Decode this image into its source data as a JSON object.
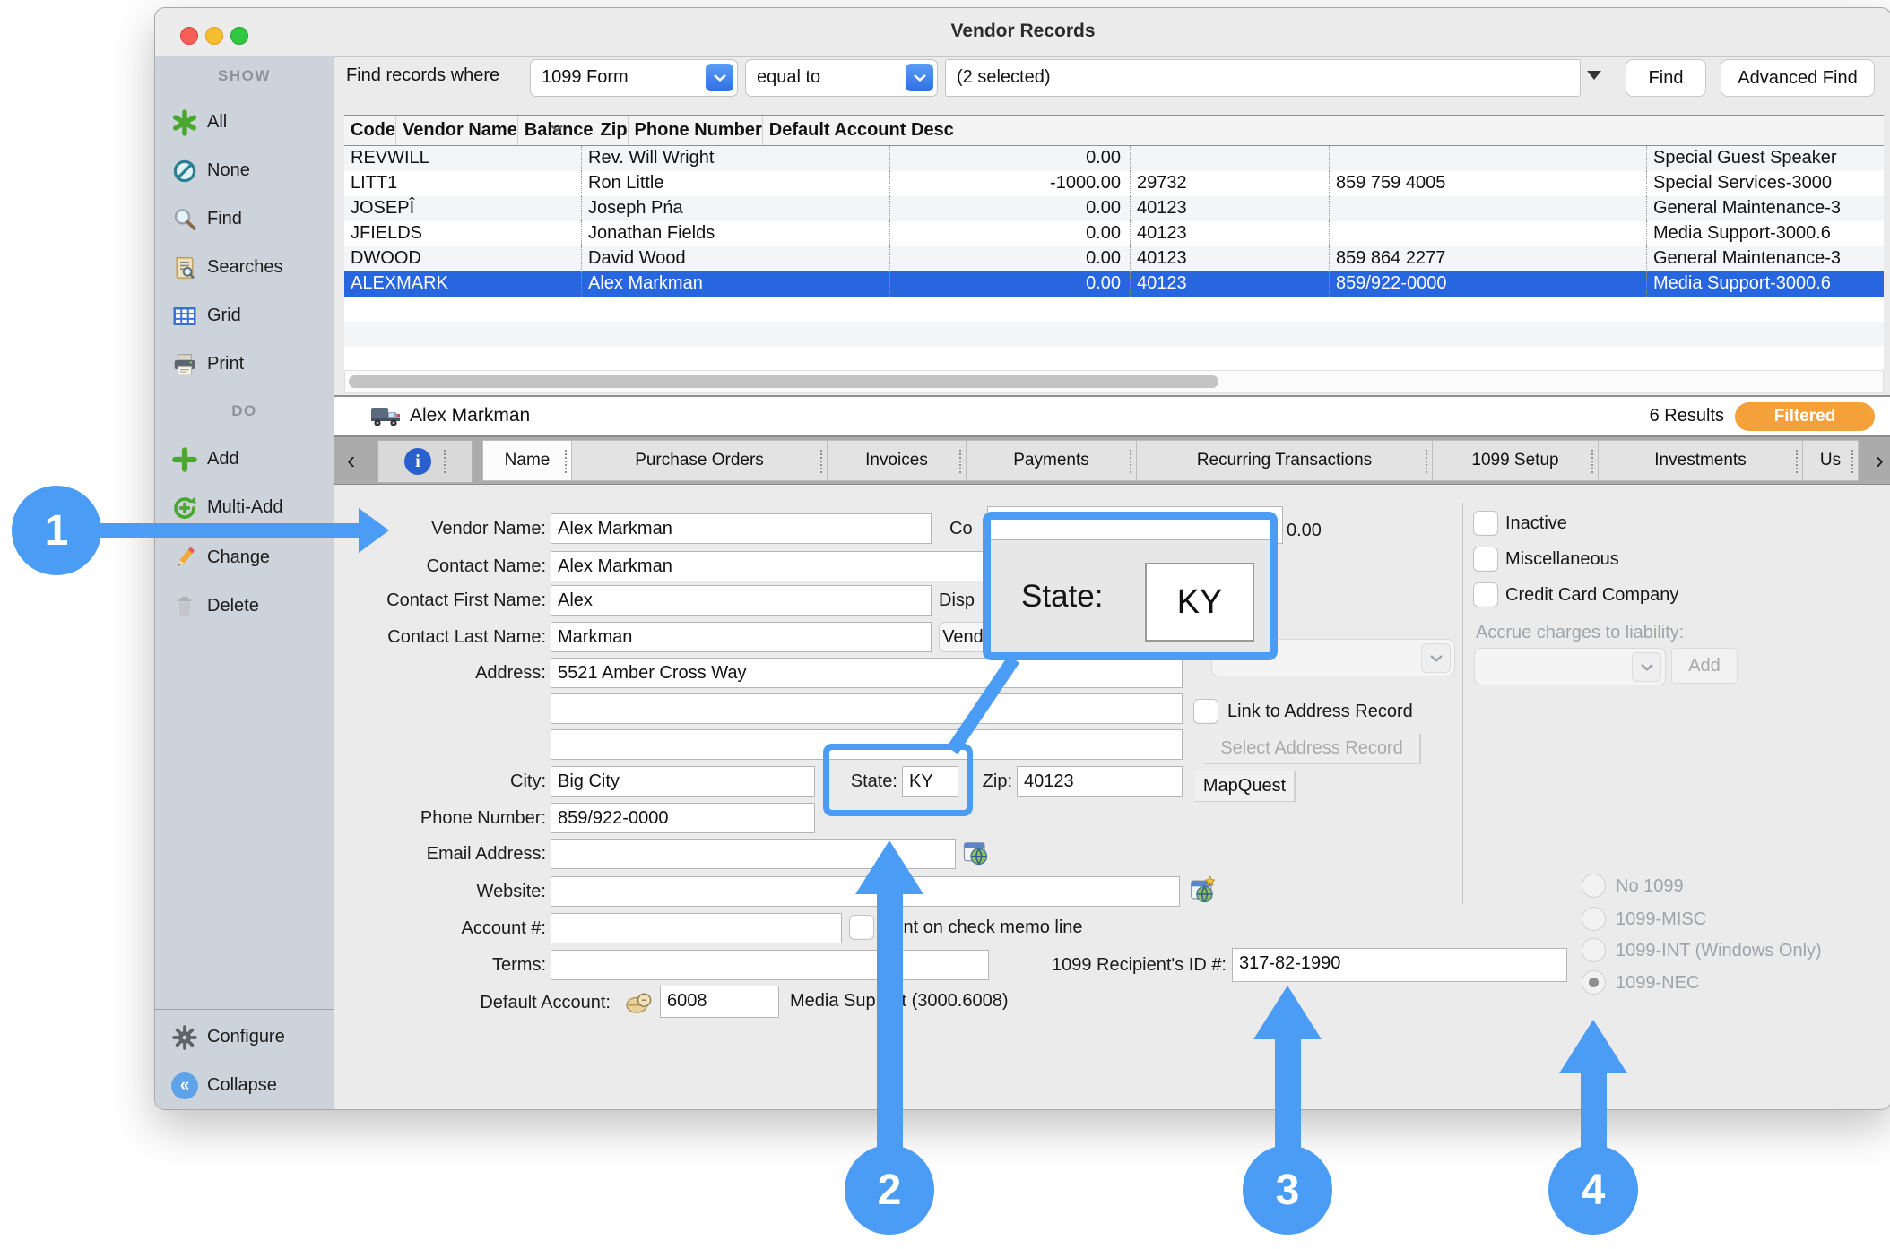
{
  "window": {
    "title": "Vendor Records"
  },
  "toolbar": {
    "find_label": "Find records where",
    "field_selector": "1099 Form",
    "operator_selector": "equal to",
    "value": "(2 selected)",
    "find_button": "Find",
    "advanced_find_button": "Advanced Find"
  },
  "sidebar": {
    "show_header": "SHOW",
    "do_header": "DO",
    "items": {
      "all": "All",
      "none": "None",
      "find": "Find",
      "searches": "Searches",
      "grid": "Grid",
      "print": "Print",
      "add": "Add",
      "multi_add": "Multi-Add",
      "change": "Change",
      "delete": "Delete",
      "configure": "Configure",
      "collapse": "Collapse"
    }
  },
  "table": {
    "columns": [
      "Code",
      "Vendor Name",
      "Balance",
      "Zip",
      "Phone Number",
      "Default Account Desc"
    ],
    "rows": [
      {
        "cells": [
          "REVWILL",
          "Rev. Will Wright",
          "0.00",
          "",
          "",
          "Special Guest Speaker"
        ],
        "selected": false
      },
      {
        "cells": [
          "LITT1",
          "Ron Little",
          "-1000.00",
          "29732",
          "859 759 4005",
          "Special Services-3000"
        ],
        "selected": false
      },
      {
        "cells": [
          "JOSEPÎ",
          "Joseph Pńa",
          "0.00",
          "40123",
          "",
          "General Maintenance-3"
        ],
        "selected": false
      },
      {
        "cells": [
          "JFIELDS",
          "Jonathan Fields",
          "0.00",
          "40123",
          "",
          "Media Support-3000.6"
        ],
        "selected": false
      },
      {
        "cells": [
          "DWOOD",
          "David Wood",
          "0.00",
          "40123",
          "859 864 2277",
          "General Maintenance-3"
        ],
        "selected": false
      },
      {
        "cells": [
          "ALEXMARK",
          "Alex Markman",
          "0.00",
          "40123",
          "859/922-0000",
          "Media Support-3000.6"
        ],
        "selected": true
      }
    ]
  },
  "record_header": {
    "name": "Alex Markman",
    "results": "6 Results",
    "badge": "Filtered"
  },
  "tabs": {
    "items": [
      {
        "label": "Name",
        "selected": true
      },
      {
        "label": "Purchase Orders",
        "selected": false
      },
      {
        "label": "Invoices",
        "selected": false
      },
      {
        "label": "Payments",
        "selected": false
      },
      {
        "label": "Recurring Transactions",
        "selected": false
      },
      {
        "label": "1099 Setup",
        "selected": false
      },
      {
        "label": "Investments",
        "selected": false
      },
      {
        "label": "Us",
        "selected": false
      }
    ]
  },
  "form": {
    "vendor_name": {
      "label": "Vendor Name:",
      "value": "Alex Markman"
    },
    "contact_name": {
      "label": "Contact Name:",
      "value": "Alex Markman"
    },
    "contact_first": {
      "label": "Contact First Name:",
      "value": "Alex"
    },
    "contact_last": {
      "label": "Contact Last Name:",
      "value": "Markman"
    },
    "address": {
      "label": "Address:",
      "line1": "5521 Amber Cross Way",
      "line2": "",
      "line3": ""
    },
    "city": {
      "label": "City:",
      "value": "Big City"
    },
    "state": {
      "label": "State:",
      "value": "KY"
    },
    "zip": {
      "label": "Zip:",
      "value": "40123"
    },
    "phone": {
      "label": "Phone Number:",
      "value": "859/922-0000"
    },
    "email": {
      "label": "Email Address:",
      "value": ""
    },
    "website": {
      "label": "Website:",
      "value": ""
    },
    "account": {
      "label": "Account #:",
      "value": "",
      "memo_label": "Print on check memo line"
    },
    "terms": {
      "label": "Terms:",
      "value": ""
    },
    "recipient": {
      "label": "1099 Recipient's ID #:",
      "value": "317-82-1990"
    },
    "default_account": {
      "label": "Default Account:",
      "value": "6008",
      "desc": "Media Support (3000.6008)"
    }
  },
  "fragments": {
    "balance_label": "Co",
    "balance_value": "0.00",
    "display_fragment": "Disp",
    "vendor_fragment": "Vend"
  },
  "address_panel": {
    "link_label": "Link to Address Record",
    "select_button": "Select Address Record",
    "mapquest_button": "MapQuest"
  },
  "right_panel": {
    "inactive": "Inactive",
    "miscellaneous": "Miscellaneous",
    "credit_card": "Credit Card Company",
    "accrue_label": "Accrue charges to liability:",
    "add_button": "Add",
    "radios": [
      {
        "label": "No 1099",
        "selected": false
      },
      {
        "label": "1099-MISC",
        "selected": false
      },
      {
        "label": "1099-INT (Windows Only)",
        "selected": false
      },
      {
        "label": "1099-NEC",
        "selected": true
      }
    ]
  },
  "inset": {
    "state_label": "State:",
    "state_value": "KY"
  },
  "callouts": {
    "one": "1",
    "two": "2",
    "three": "3",
    "four": "4"
  },
  "colors": {
    "accent_blue": "#4a9cf4",
    "selected_row": "#2766de",
    "badge_orange": "#f4a13a"
  }
}
